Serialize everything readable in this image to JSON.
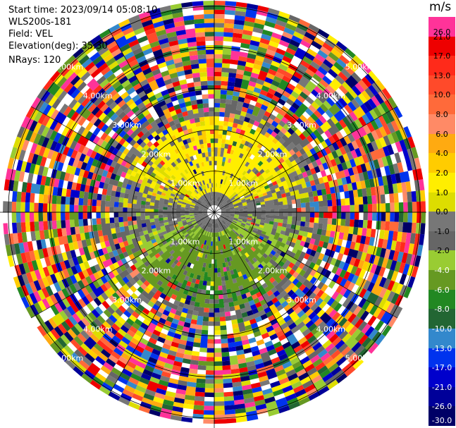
{
  "header": {
    "start_time": "Start time: 2023/09/14 05:08:10",
    "instrument": "WLS200s-181",
    "field": "Field: VEL",
    "elevation": "Elevation(deg): 35.30",
    "nrays": "NRays: 120"
  },
  "range_rings": [
    "1.00km",
    "2.00km",
    "3.00km",
    "4.00km",
    "5.00km"
  ],
  "colorbar": {
    "unit": "m/s",
    "levels": [
      "26.0",
      "21.0",
      "17.0",
      "13.0",
      "10.0",
      "8.0",
      "6.0",
      "4.0",
      "2.0",
      "1.0",
      "0.0",
      "-1.0",
      "-2.0",
      "-4.0",
      "-6.0",
      "-8.0",
      "-10.0",
      "-13.0",
      "-17.0",
      "-21.0",
      "-26.0",
      "-30.0"
    ],
    "colors": [
      "#ff3399",
      "#ee0000",
      "#ff2a1a",
      "#ff4a2a",
      "#ff6a3a",
      "#ff8a66",
      "#ffaa11",
      "#ffcc00",
      "#ffee00",
      "#dddd00",
      "#777777",
      "#666666",
      "#99cc33",
      "#669922",
      "#228822",
      "#226633",
      "#3388cc",
      "#0033ee",
      "#0000cc",
      "#000099",
      "#000066"
    ]
  },
  "chart_data": {
    "type": "heatmap",
    "projection": "polar PPI",
    "field": "VEL",
    "units": "m/s",
    "n_rays": 120,
    "elevation_deg": 35.3,
    "range_rings_km": [
      1,
      2,
      3,
      4,
      5
    ],
    "colorbar_levels": [
      26.0,
      21.0,
      17.0,
      13.0,
      10.0,
      8.0,
      6.0,
      4.0,
      2.0,
      1.0,
      0.0,
      -1.0,
      -2.0,
      -4.0,
      -6.0,
      -8.0,
      -10.0,
      -13.0,
      -17.0,
      -21.0,
      -26.0,
      -30.0
    ],
    "pattern": "near-range coherent radial velocity (yellow/orange north, green south), noisy multicolor beyond ~2.5 km"
  }
}
